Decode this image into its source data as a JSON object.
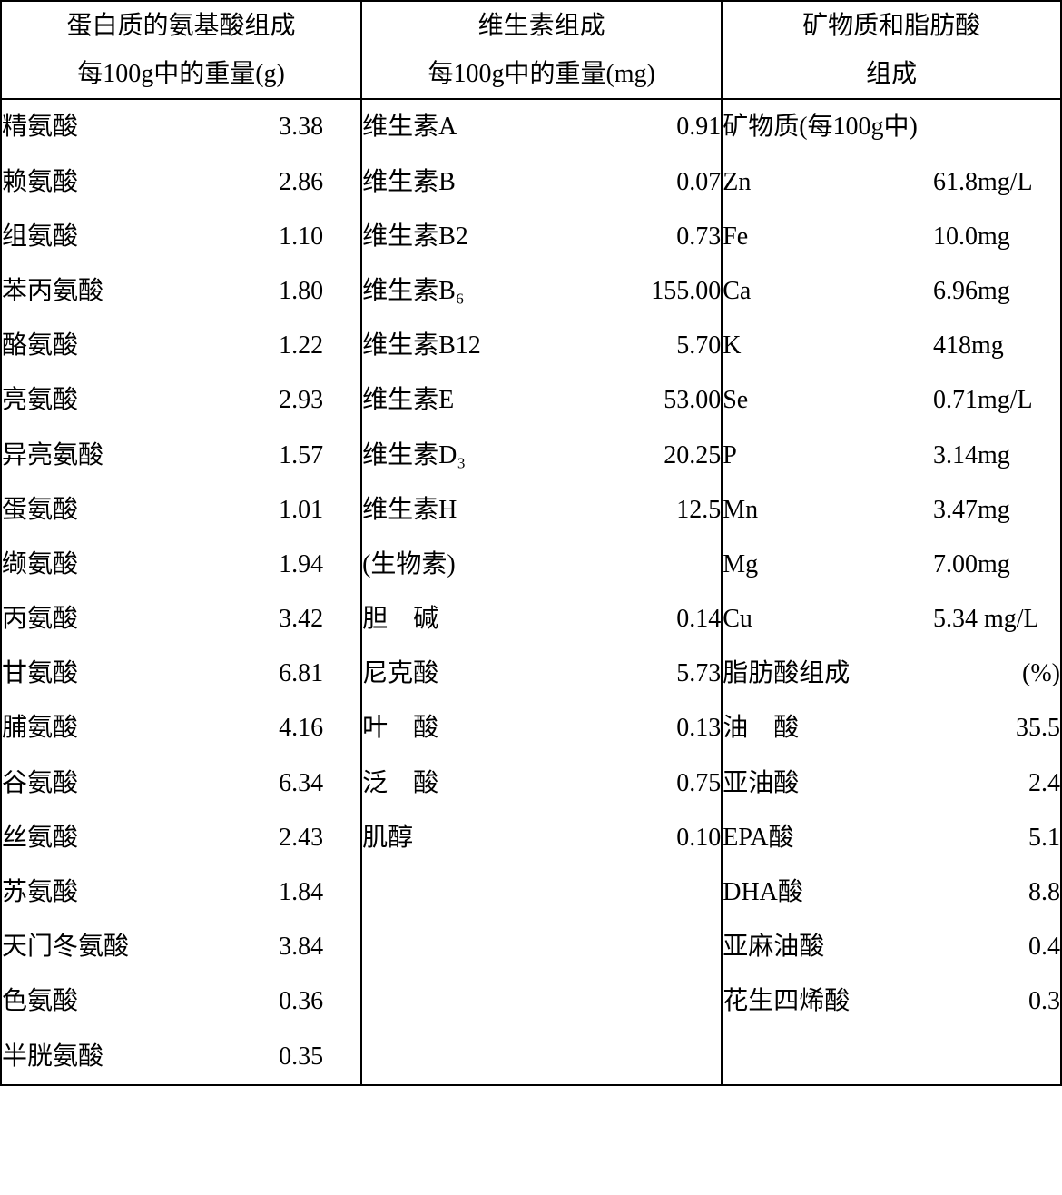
{
  "table": {
    "border_color": "#000000",
    "background_color": "#ffffff",
    "text_color": "#000000",
    "font_family": "SimSun",
    "header_fontsize": 28,
    "body_fontsize": 28,
    "columns": [
      {
        "header_line1": "蛋白质的氨基酸组成",
        "header_line2": "每100g中的重量(g)",
        "rows": [
          {
            "label": "精氨酸",
            "value": "3.38"
          },
          {
            "label": "赖氨酸",
            "value": "2.86"
          },
          {
            "label": "组氨酸",
            "value": "1.10"
          },
          {
            "label": "苯丙氨酸",
            "value": "1.80"
          },
          {
            "label": "酪氨酸",
            "value": "1.22"
          },
          {
            "label": "亮氨酸",
            "value": "2.93"
          },
          {
            "label": "异亮氨酸",
            "value": "1.57"
          },
          {
            "label": "蛋氨酸",
            "value": "1.01"
          },
          {
            "label": "缬氨酸",
            "value": "1.94"
          },
          {
            "label": "丙氨酸",
            "value": "3.42"
          },
          {
            "label": "甘氨酸",
            "value": "6.81"
          },
          {
            "label": "脯氨酸",
            "value": "4.16"
          },
          {
            "label": "谷氨酸",
            "value": "6.34"
          },
          {
            "label": "丝氨酸",
            "value": "2.43"
          },
          {
            "label": "苏氨酸",
            "value": "1.84"
          },
          {
            "label": "天门冬氨酸",
            "value": "3.84"
          },
          {
            "label": "色氨酸",
            "value": "0.36"
          },
          {
            "label": "半胱氨酸",
            "value": "0.35"
          }
        ]
      },
      {
        "header_line1": "维生素组成",
        "header_line2": "每100g中的重量(mg)",
        "rows": [
          {
            "label": "维生素A",
            "value": "0.91"
          },
          {
            "label": "维生素B",
            "value": "0.07"
          },
          {
            "label": "维生素B2",
            "value": "0.73"
          },
          {
            "label": "维生素B₆",
            "value": "155.00"
          },
          {
            "label": "维生素B12",
            "value": "5.70"
          },
          {
            "label": "维生素E",
            "value": "53.00"
          },
          {
            "label": "维生素D₃",
            "value": "20.25"
          },
          {
            "label": "维生素H",
            "value": "12.5"
          },
          {
            "label": "(生物素)",
            "value": ""
          },
          {
            "label": "胆　碱",
            "value": "0.14"
          },
          {
            "label": "尼克酸",
            "value": "5.73"
          },
          {
            "label": "叶　酸",
            "value": "0.13"
          },
          {
            "label": "泛　酸",
            "value": "0.75"
          },
          {
            "label": "肌醇",
            "value": "0.10"
          },
          {
            "label": " ",
            "value": ""
          },
          {
            "label": " ",
            "value": ""
          },
          {
            "label": " ",
            "value": ""
          },
          {
            "label": " ",
            "value": ""
          }
        ]
      },
      {
        "header_line1": "矿物质和脂肪酸",
        "header_line2": "组成",
        "minerals_header": "矿物质(每100g中)",
        "minerals": [
          {
            "label": "Zn",
            "value": "61.8mg/L"
          },
          {
            "label": "Fe",
            "value": "10.0mg"
          },
          {
            "label": "Ca",
            "value": "6.96mg"
          },
          {
            "label": "K",
            "value": "418mg"
          },
          {
            "label": "Se",
            "value": "0.71mg/L"
          },
          {
            "label": "P",
            "value": "3.14mg"
          },
          {
            "label": "Mn",
            "value": "3.47mg"
          },
          {
            "label": "Mg",
            "value": "7.00mg"
          },
          {
            "label": "Cu",
            "value": "5.34 mg/L"
          }
        ],
        "fatty_header_label": "脂肪酸组成",
        "fatty_header_value": "(%)",
        "fatty_acids": [
          {
            "label": "油　酸",
            "value": "35.5"
          },
          {
            "label": "亚油酸",
            "value": "2.4"
          },
          {
            "label": "EPA酸",
            "value": "5.1"
          },
          {
            "label": "DHA酸",
            "value": "8.8"
          },
          {
            "label": "亚麻油酸",
            "value": "0.4"
          },
          {
            "label": "花生四烯酸",
            "value": "0.3"
          }
        ]
      }
    ]
  }
}
